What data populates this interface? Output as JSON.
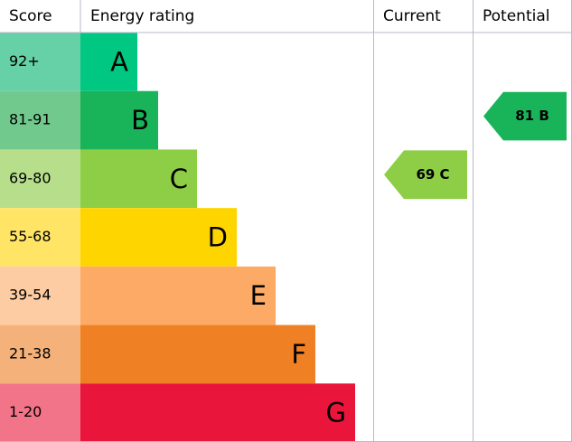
{
  "headers": [
    "Score",
    "Energy rating",
    "Current",
    "Potential"
  ],
  "rows": [
    {
      "score": "92+",
      "rating": "A"
    },
    {
      "score": "81-91",
      "rating": "B"
    },
    {
      "score": "69-80",
      "rating": "C"
    },
    {
      "score": "55-68",
      "rating": "D"
    },
    {
      "score": "39-54",
      "rating": "E"
    },
    {
      "score": "21-38",
      "rating": "F"
    },
    {
      "score": "1-20",
      "rating": "G"
    }
  ],
  "current": "69 C",
  "potential": "81 B"
}
